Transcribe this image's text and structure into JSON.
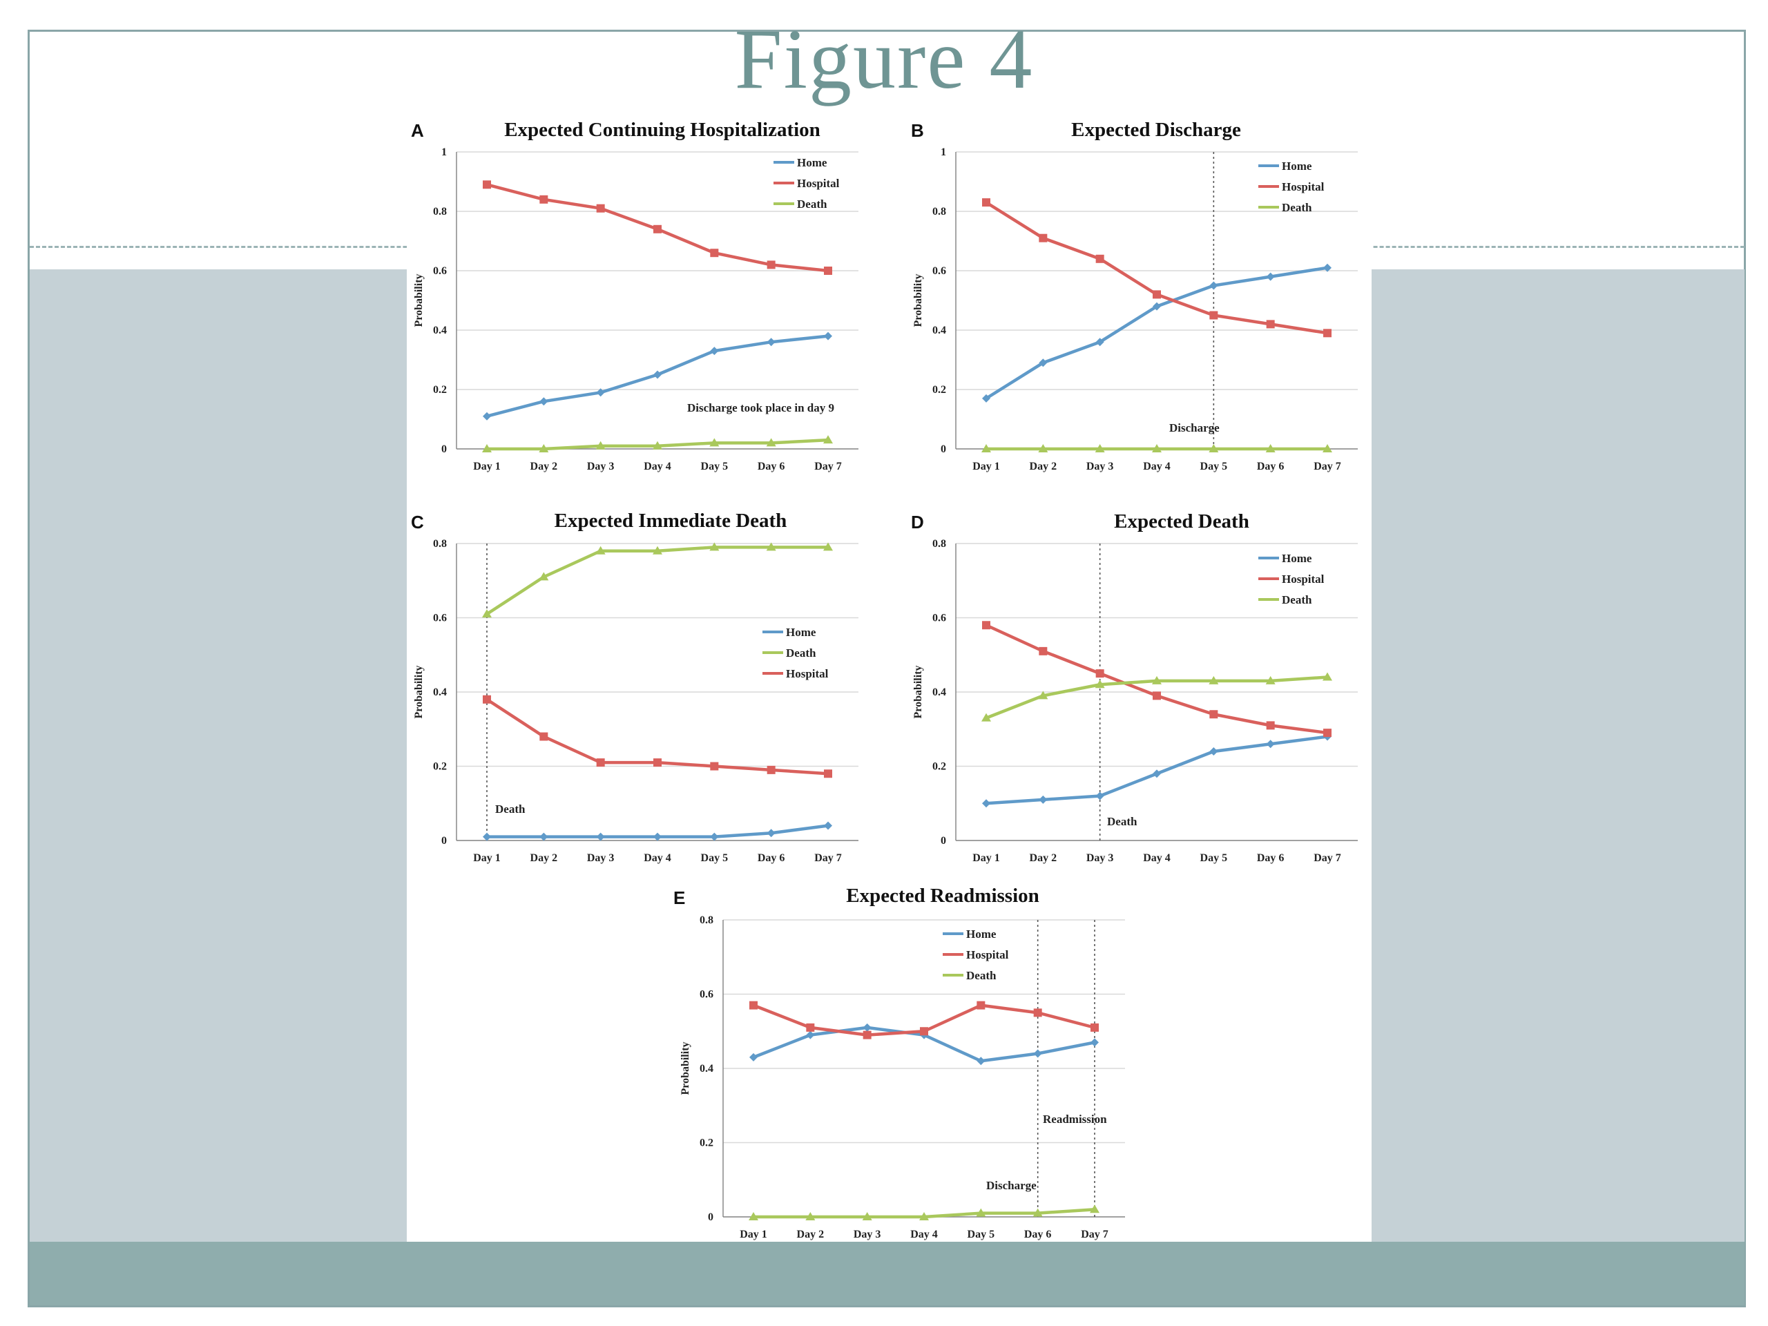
{
  "slide": {
    "title": "Figure 4"
  },
  "colors": {
    "Home": "#5f9ac9",
    "Hospital": "#d9605c",
    "Death": "#a9c85c",
    "grid": "#d9d9d9",
    "axis": "#888888"
  },
  "chart_data": [
    {
      "letter": "A",
      "type": "line",
      "title": "Expected Continuing Hospitalization",
      "ylabel": "Probability",
      "categories": [
        "Day 1",
        "Day 2",
        "Day 3",
        "Day 4",
        "Day 5",
        "Day 6",
        "Day 7"
      ],
      "ylim": [
        0,
        1
      ],
      "yticks": [
        "0",
        "0.2",
        "0.4",
        "0.6",
        "0.8",
        "1"
      ],
      "grid": true,
      "legend_position": "top-right",
      "series": [
        {
          "name": "Home",
          "values": [
            0.11,
            0.16,
            0.19,
            0.25,
            0.33,
            0.36,
            0.38
          ]
        },
        {
          "name": "Hospital",
          "values": [
            0.89,
            0.84,
            0.81,
            0.74,
            0.66,
            0.62,
            0.6
          ]
        },
        {
          "name": "Death",
          "values": [
            0.0,
            0.0,
            0.01,
            0.01,
            0.02,
            0.02,
            0.03
          ]
        }
      ],
      "annotations": [
        {
          "text": "Discharge took place in day 9"
        }
      ]
    },
    {
      "letter": "B",
      "type": "line",
      "title": "Expected Discharge",
      "ylabel": "Probability",
      "categories": [
        "Day 1",
        "Day 2",
        "Day 3",
        "Day 4",
        "Day 5",
        "Day 6",
        "Day 7"
      ],
      "ylim": [
        0,
        1
      ],
      "yticks": [
        "0",
        "0.2",
        "0.4",
        "0.6",
        "0.8",
        "1"
      ],
      "grid": true,
      "legend_position": "top-right",
      "series": [
        {
          "name": "Home",
          "values": [
            0.17,
            0.29,
            0.36,
            0.48,
            0.55,
            0.58,
            0.61
          ]
        },
        {
          "name": "Hospital",
          "values": [
            0.83,
            0.71,
            0.64,
            0.52,
            0.45,
            0.42,
            0.39
          ]
        },
        {
          "name": "Death",
          "values": [
            0.0,
            0.0,
            0.0,
            0.0,
            0.0,
            0.0,
            0.0
          ]
        }
      ],
      "vlines": [
        {
          "at": "Day 5",
          "label": "Discharge"
        }
      ]
    },
    {
      "letter": "C",
      "type": "line",
      "title": "Expected Immediate Death",
      "ylabel": "Probability",
      "categories": [
        "Day 1",
        "Day 2",
        "Day 3",
        "Day 4",
        "Day 5",
        "Day 6",
        "Day 7"
      ],
      "ylim": [
        0,
        0.8
      ],
      "yticks": [
        "0",
        "0.2",
        "0.4",
        "0.6",
        "0.8"
      ],
      "grid": true,
      "legend_position": "middle-right",
      "series": [
        {
          "name": "Home",
          "values": [
            0.01,
            0.01,
            0.01,
            0.01,
            0.01,
            0.02,
            0.04
          ]
        },
        {
          "name": "Death",
          "values": [
            0.61,
            0.71,
            0.78,
            0.78,
            0.79,
            0.79,
            0.79
          ]
        },
        {
          "name": "Hospital",
          "values": [
            0.38,
            0.28,
            0.21,
            0.21,
            0.2,
            0.19,
            0.18
          ]
        }
      ],
      "vlines": [
        {
          "at": "Day 1",
          "label": "Death"
        }
      ]
    },
    {
      "letter": "D",
      "type": "line",
      "title": "Expected Death",
      "ylabel": "Probability",
      "categories": [
        "Day 1",
        "Day 2",
        "Day 3",
        "Day 4",
        "Day 5",
        "Day 6",
        "Day 7"
      ],
      "ylim": [
        0,
        0.8
      ],
      "yticks": [
        "0",
        "0.2",
        "0.4",
        "0.6",
        "0.8"
      ],
      "grid": true,
      "legend_position": "top-right",
      "series": [
        {
          "name": "Home",
          "values": [
            0.1,
            0.11,
            0.12,
            0.18,
            0.24,
            0.26,
            0.28
          ]
        },
        {
          "name": "Hospital",
          "values": [
            0.58,
            0.51,
            0.45,
            0.39,
            0.34,
            0.31,
            0.29
          ]
        },
        {
          "name": "Death",
          "values": [
            0.33,
            0.39,
            0.42,
            0.43,
            0.43,
            0.43,
            0.44
          ]
        }
      ],
      "vlines": [
        {
          "at": "Day 3",
          "label": "Death"
        }
      ]
    },
    {
      "letter": "E",
      "type": "line",
      "title": "Expected Readmission",
      "ylabel": "Probability",
      "categories": [
        "Day 1",
        "Day 2",
        "Day 3",
        "Day 4",
        "Day 5",
        "Day 6",
        "Day 7"
      ],
      "ylim": [
        0,
        0.8
      ],
      "yticks": [
        "0",
        "0.2",
        "0.4",
        "0.6",
        "0.8"
      ],
      "grid": true,
      "legend_position": "top-center",
      "series": [
        {
          "name": "Home",
          "values": [
            0.43,
            0.49,
            0.51,
            0.49,
            0.42,
            0.44,
            0.47
          ]
        },
        {
          "name": "Hospital",
          "values": [
            0.57,
            0.51,
            0.49,
            0.5,
            0.57,
            0.55,
            0.51
          ]
        },
        {
          "name": "Death",
          "values": [
            0.0,
            0.0,
            0.0,
            0.0,
            0.01,
            0.01,
            0.02
          ]
        }
      ],
      "vlines": [
        {
          "at": "Day 6",
          "label": "Discharge"
        },
        {
          "at": "Day 7",
          "label": "Readmission"
        }
      ]
    }
  ]
}
